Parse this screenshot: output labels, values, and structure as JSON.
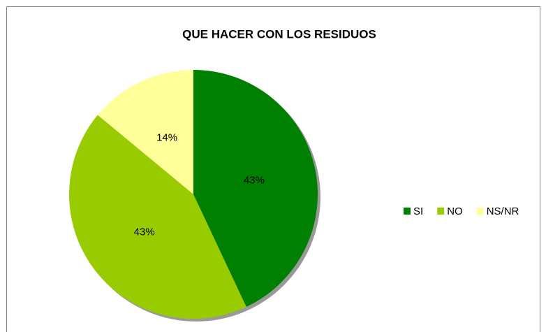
{
  "chart_data": {
    "type": "pie",
    "title": "QUE HACER CON LOS RESIDUOS",
    "categories": [
      "SI",
      "NO",
      "NS/NR"
    ],
    "values": [
      43,
      43,
      14
    ],
    "value_labels": [
      "43%",
      "43%",
      "14%"
    ],
    "colors": [
      "#008000",
      "#99cc00",
      "#ffff99"
    ],
    "legend": "right"
  }
}
